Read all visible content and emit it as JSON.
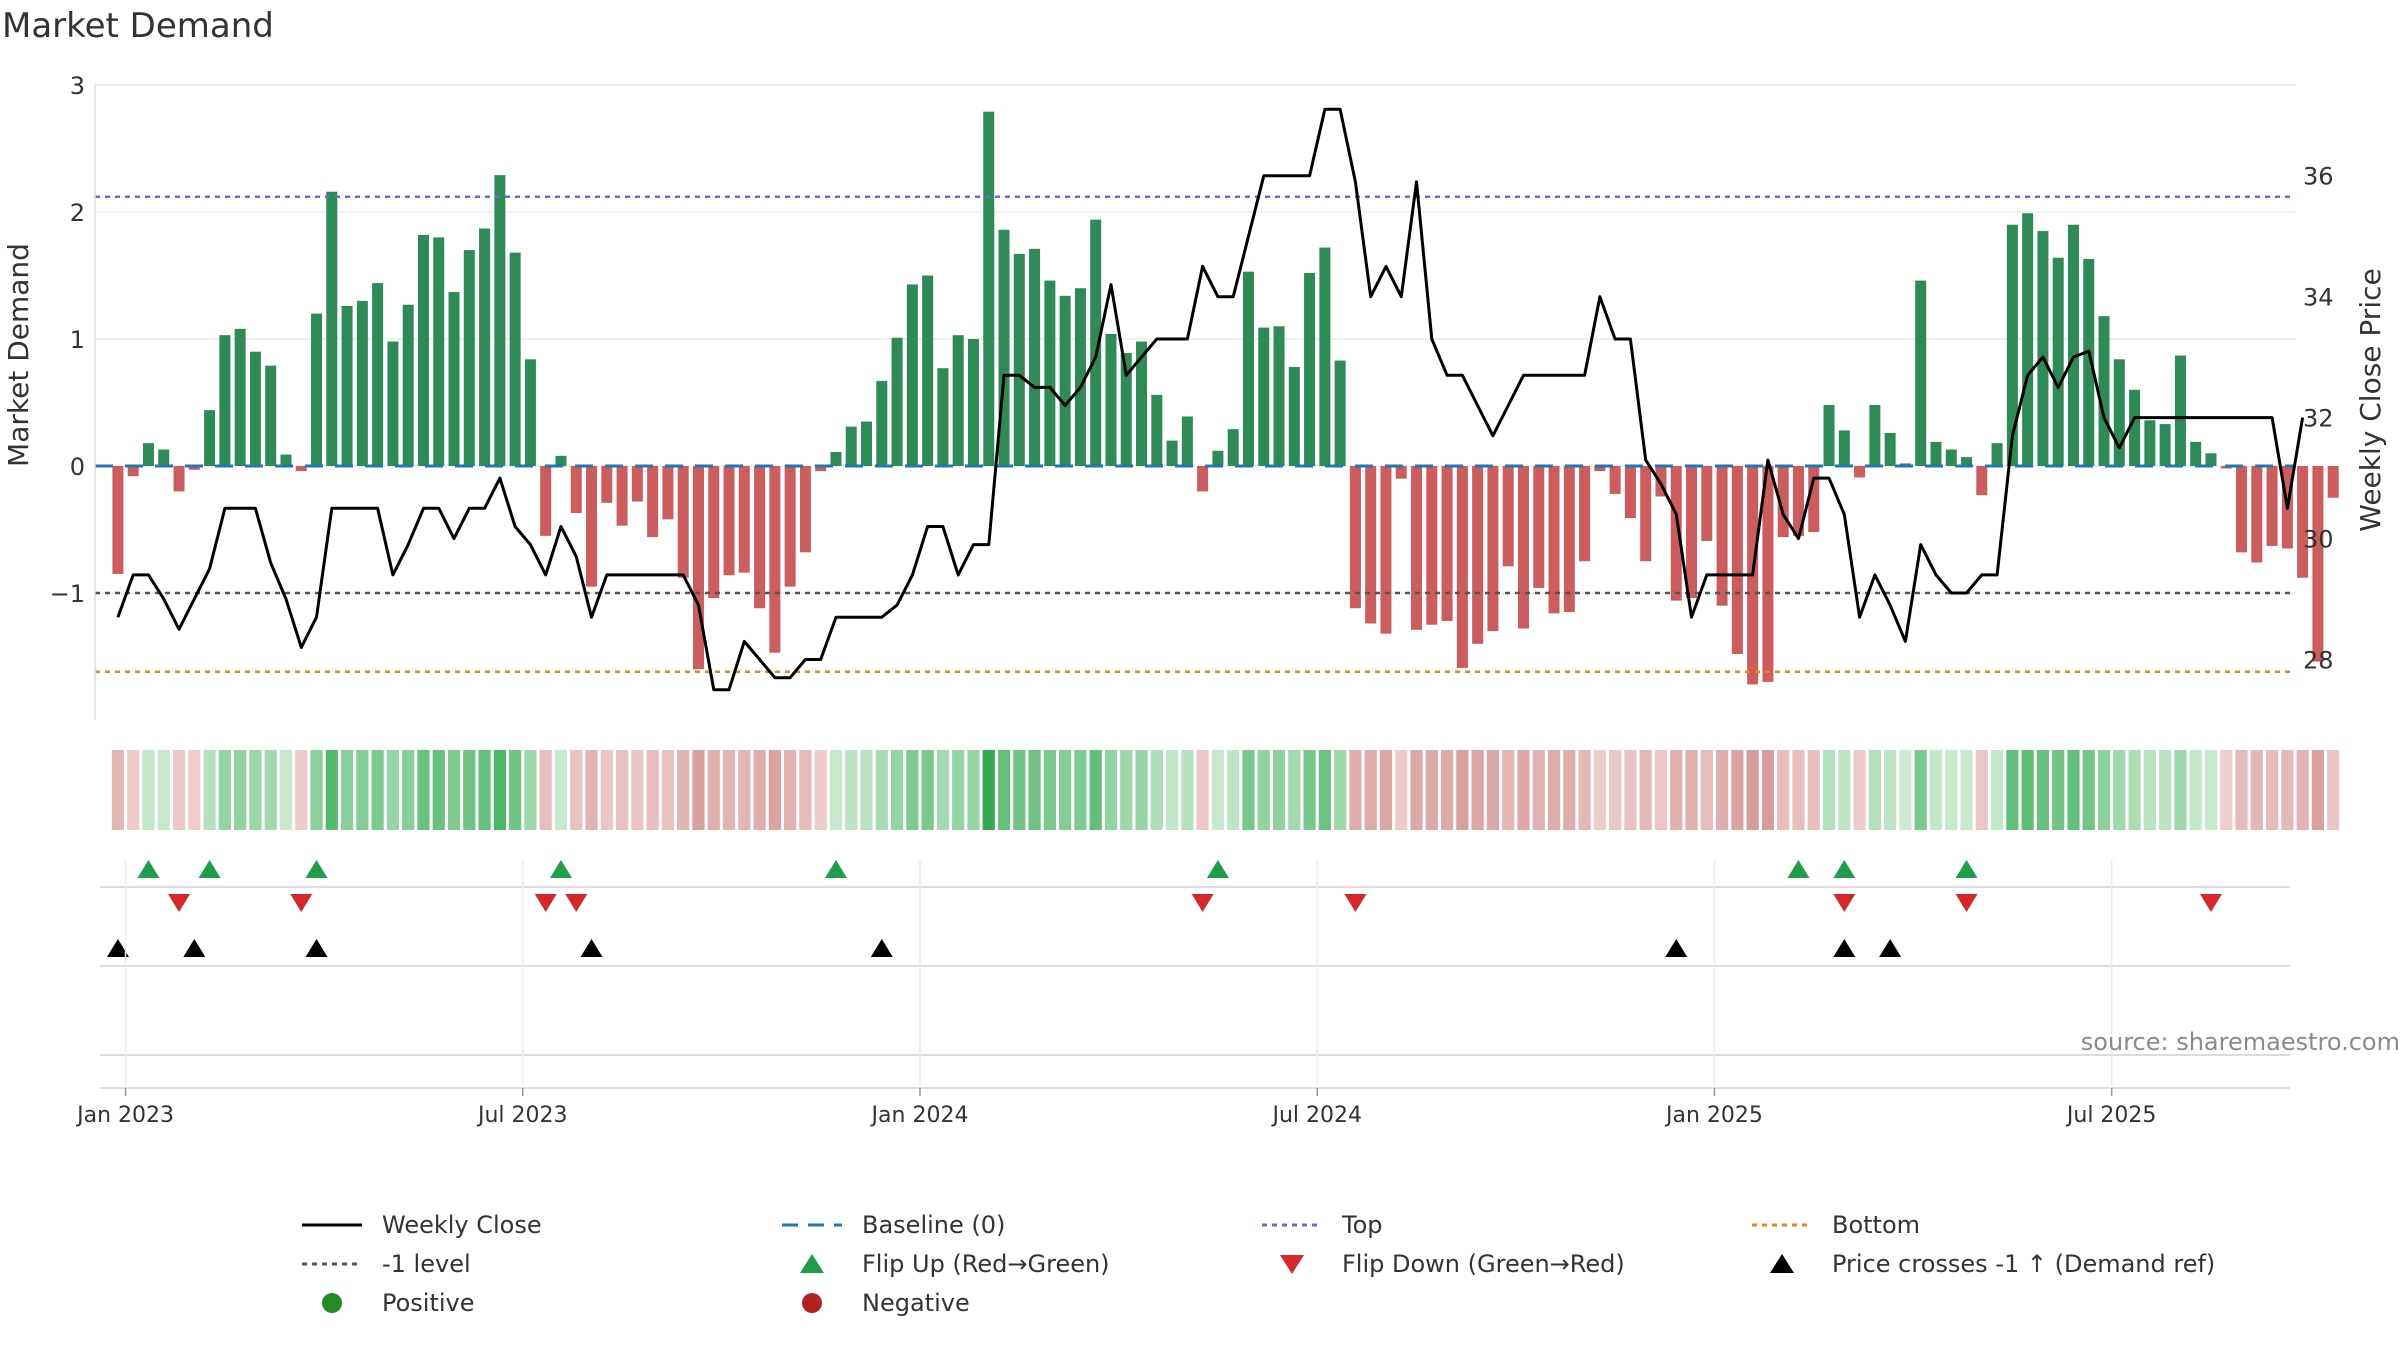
{
  "title": "Market Demand",
  "source": "source: sharemaestro.com",
  "colors": {
    "positive": "#2e8b57",
    "negative": "#cd5c5c",
    "close": "#000000",
    "baseline": "#1f77b4",
    "top": "#6a6acd",
    "bottom": "#e08a1e",
    "minus1": "#555555",
    "flip_up": "#1f9e4a",
    "flip_down": "#d62728",
    "cross": "#000000"
  },
  "chart_data": {
    "type": "bar",
    "title": "Market Demand",
    "ylabel": "Market Demand",
    "y2label": "Weekly Close Price",
    "ylim": [
      -2.0,
      3.0
    ],
    "y2lim": [
      27.0,
      37.5
    ],
    "left_ticks": [
      "3",
      "2",
      "1",
      "0",
      "−1"
    ],
    "left_tick_values": [
      3,
      2,
      1,
      0,
      -1
    ],
    "right_ticks": [
      "36",
      "34",
      "32",
      "30",
      "28"
    ],
    "right_tick_values": [
      36,
      34,
      32,
      30,
      28
    ],
    "x_ticks": [
      "Jan 2023",
      "Jul 2023",
      "Jan 2024",
      "Jul 2024",
      "Jan 2025",
      "Jul 2025"
    ],
    "x_tick_weeks": [
      0.5,
      26.5,
      52.5,
      78.5,
      104.5,
      130.5
    ],
    "week_span": [
      -1.5,
      142.5
    ],
    "top_level": 2.12,
    "bottom_level": -1.62,
    "minus1_level": -1.0,
    "demand": [
      -0.85,
      -0.08,
      0.18,
      0.13,
      -0.2,
      -0.03,
      0.44,
      1.03,
      1.08,
      0.9,
      0.79,
      0.09,
      -0.04,
      1.2,
      2.16,
      1.26,
      1.3,
      1.44,
      0.98,
      1.27,
      1.82,
      1.8,
      1.37,
      1.7,
      1.87,
      2.29,
      1.68,
      0.84,
      -0.55,
      0.08,
      -0.37,
      -0.95,
      -0.29,
      -0.47,
      -0.28,
      -0.56,
      -0.42,
      -0.88,
      -1.6,
      -1.04,
      -0.86,
      -0.84,
      -1.12,
      -1.47,
      -0.95,
      -0.68,
      -0.04,
      0.11,
      0.31,
      0.35,
      0.67,
      1.01,
      1.43,
      1.5,
      0.77,
      1.03,
      1.0,
      2.79,
      1.86,
      1.67,
      1.71,
      1.46,
      1.34,
      1.4,
      1.94,
      1.04,
      0.89,
      0.98,
      0.56,
      0.2,
      0.39,
      -0.2,
      0.12,
      0.29,
      1.53,
      1.09,
      1.1,
      0.78,
      1.52,
      1.72,
      0.83,
      -1.12,
      -1.24,
      -1.32,
      -0.1,
      -1.29,
      -1.25,
      -1.22,
      -1.59,
      -1.4,
      -1.3,
      -0.79,
      -1.28,
      -0.96,
      -1.16,
      -1.15,
      -0.75,
      -0.04,
      -0.22,
      -0.41,
      -0.75,
      -0.24,
      -1.06,
      -1.04,
      -0.59,
      -1.1,
      -1.48,
      -1.72,
      -1.7,
      -0.56,
      -0.55,
      -0.52,
      0.48,
      0.28,
      -0.09,
      0.48,
      0.26,
      0.02,
      1.46,
      0.19,
      0.13,
      0.07,
      -0.23,
      0.18,
      1.9,
      1.99,
      1.85,
      1.64,
      1.9,
      1.63,
      1.18,
      0.84,
      0.6,
      0.36,
      0.33,
      0.87,
      0.19,
      0.1,
      -0.02,
      -0.68,
      -0.76,
      -0.63,
      -0.65,
      -0.88,
      -1.54,
      -0.25
    ],
    "close": [
      28.7,
      29.4,
      29.4,
      29.0,
      28.5,
      29.0,
      29.5,
      30.5,
      30.5,
      30.5,
      29.6,
      29.0,
      28.2,
      28.7,
      30.5,
      30.5,
      30.5,
      30.5,
      29.4,
      29.9,
      30.5,
      30.5,
      30.0,
      30.5,
      30.5,
      31.0,
      30.2,
      29.9,
      29.4,
      30.2,
      29.7,
      28.7,
      29.4,
      29.4,
      29.4,
      29.4,
      29.4,
      29.4,
      28.9,
      27.5,
      27.5,
      28.3,
      28.0,
      27.7,
      27.7,
      28.0,
      28.0,
      28.7,
      28.7,
      28.7,
      28.7,
      28.9,
      29.4,
      30.2,
      30.2,
      29.4,
      29.9,
      29.9,
      32.7,
      32.7,
      32.5,
      32.5,
      32.2,
      32.5,
      33.0,
      34.2,
      32.7,
      33.0,
      33.3,
      33.3,
      33.3,
      34.5,
      34.0,
      34.0,
      35.0,
      36.0,
      36.0,
      36.0,
      36.0,
      37.1,
      37.1,
      35.9,
      34.0,
      34.5,
      34.0,
      35.9,
      33.3,
      32.7,
      32.7,
      32.2,
      31.7,
      32.2,
      32.7,
      32.7,
      32.7,
      32.7,
      32.7,
      34.0,
      33.3,
      33.3,
      31.3,
      30.9,
      30.4,
      28.7,
      29.4,
      29.4,
      29.4,
      29.4,
      31.3,
      30.4,
      30.0,
      31.0,
      31.0,
      30.4,
      28.7,
      29.4,
      28.9,
      28.3,
      29.9,
      29.4,
      29.1,
      29.1,
      29.4,
      29.4,
      31.7,
      32.7,
      33.0,
      32.5,
      33.0,
      33.1,
      32.0,
      31.5,
      32.0,
      32.0,
      32.0,
      32.0,
      32.0,
      32.0,
      32.0,
      32.0,
      32.0,
      32.0,
      30.5,
      32.0
    ],
    "flip_up_weeks": [
      2,
      6,
      13,
      29,
      47,
      72,
      110,
      113,
      121
    ],
    "flip_down_weeks": [
      4,
      12,
      28,
      30,
      71,
      81,
      113,
      121,
      137
    ],
    "cross_weeks": [
      0,
      5,
      13,
      31,
      50,
      102,
      113,
      116
    ],
    "legend": [
      {
        "label": "Weekly Close",
        "key": "close",
        "kind": "line"
      },
      {
        "label": "Baseline (0)",
        "key": "baseline",
        "kind": "dash"
      },
      {
        "label": "Top",
        "key": "top",
        "kind": "dot"
      },
      {
        "label": "Bottom",
        "key": "bottom",
        "kind": "dot"
      },
      {
        "label": "-1 level",
        "key": "minus1",
        "kind": "dot"
      },
      {
        "label": "Flip Up (Red→Green)",
        "key": "flip_up",
        "kind": "tri-up"
      },
      {
        "label": "Flip Down (Green→Red)",
        "key": "flip_down",
        "kind": "tri-down"
      },
      {
        "label": "Price crosses -1 ↑ (Demand ref)",
        "key": "cross",
        "kind": "tri-up"
      },
      {
        "label": "Positive",
        "key": "positive",
        "kind": "circle"
      },
      {
        "label": "Negative",
        "key": "negative",
        "kind": "circle-dark"
      }
    ]
  }
}
